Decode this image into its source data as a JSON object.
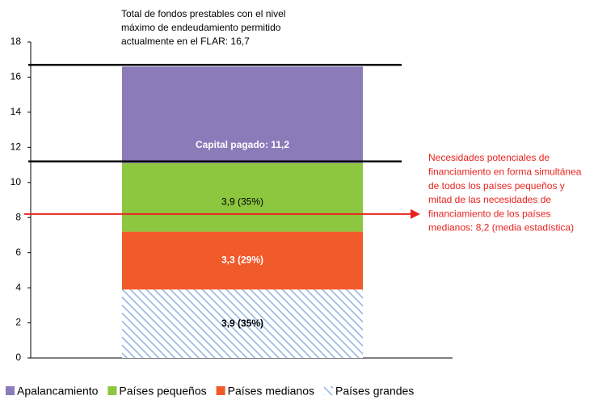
{
  "chart_data": {
    "type": "stacked_bar",
    "categories": [
      null
    ],
    "series": [
      {
        "name": "Apalancamiento",
        "color": "#8b7bb9",
        "values": [
          5.5
        ]
      },
      {
        "name": "Países pequeños",
        "color": "#8dc63f",
        "values": [
          3.9
        ],
        "value_labels": [
          "3,9 (35%)"
        ],
        "label_color": "#000000"
      },
      {
        "name": "Países medianos",
        "color": "#f15a2b",
        "values": [
          3.3
        ],
        "value_labels": [
          "3,3 (29%)"
        ],
        "label_color": "#ffffff"
      },
      {
        "name": "Países grandes",
        "color": "#8fb3e3",
        "hatch": true,
        "values": [
          3.9
        ],
        "value_labels": [
          "3,9 (35%)"
        ],
        "label_color": "#000000"
      }
    ],
    "ylim": [
      0,
      18
    ],
    "yticks": [
      0,
      2,
      4,
      6,
      8,
      10,
      12,
      14,
      16,
      18
    ],
    "annotations": [
      {
        "value": 16.7,
        "color": "#000000",
        "text": [
          "Total de fondos prestables con el nivel",
          "máximo de endeudamiento permitido",
          "actualmente en el FLAR: 16,7"
        ]
      },
      {
        "value": 11.2,
        "color": "#000000",
        "text": [
          "Capital pagado: 11,2"
        ]
      },
      {
        "value": 8.2,
        "color": "#e8231f",
        "text": [
          "Necesidades potenciales de",
          "financiamiento en forma simultánea",
          "de todos los países pequeños y",
          "mitad de las necesidades de",
          "financiamiento de los países",
          "medianos: 8,2 (media estadística)"
        ]
      }
    ],
    "legend": "bottom"
  }
}
